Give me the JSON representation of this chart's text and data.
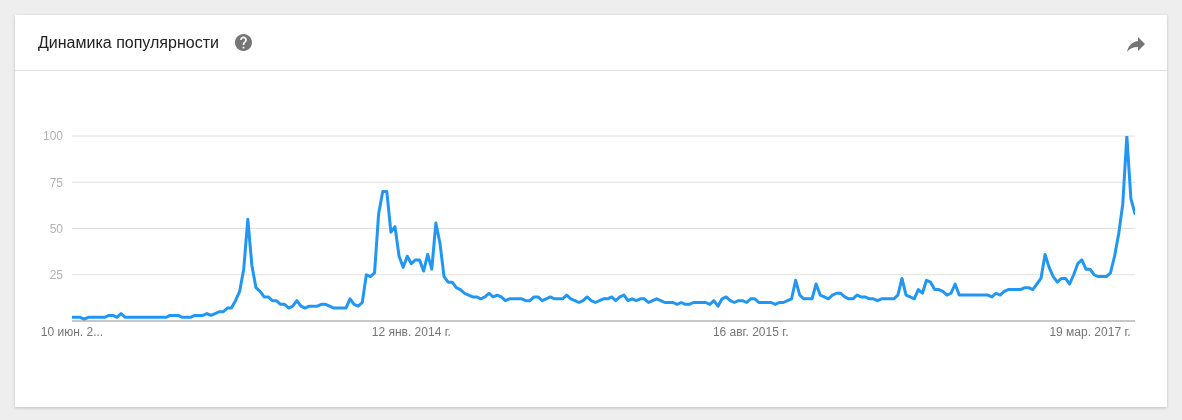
{
  "chart_data": {
    "type": "line",
    "title": "Динамика популярности",
    "color": "#2196f3",
    "x": [
      "2012-06-10",
      "2012-06-24",
      "2012-07-01",
      "2012-07-08",
      "2012-08-05",
      "2012-08-12",
      "2012-08-19",
      "2012-08-26",
      "2012-09-02",
      "2012-09-09",
      "2012-11-18",
      "2012-11-25",
      "2012-12-09",
      "2012-12-16",
      "2012-12-30",
      "2013-01-06",
      "2013-01-20",
      "2013-01-27",
      "2013-02-03",
      "2013-02-10",
      "2013-02-17",
      "2013-02-24",
      "2013-03-03",
      "2013-03-10",
      "2013-03-17",
      "2013-03-24",
      "2013-03-31",
      "2013-04-07",
      "2013-04-14",
      "2013-04-21",
      "2013-04-28",
      "2013-05-05",
      "2013-05-12",
      "2013-05-19",
      "2013-05-26",
      "2013-06-02",
      "2013-06-09",
      "2013-06-16",
      "2013-06-23",
      "2013-06-30",
      "2013-07-07",
      "2013-07-14",
      "2013-07-21",
      "2013-08-04",
      "2013-08-11",
      "2013-08-18",
      "2013-08-25",
      "2013-09-01",
      "2013-09-22",
      "2013-09-29",
      "2013-10-06",
      "2013-10-13",
      "2013-10-20",
      "2013-10-27",
      "2013-11-03",
      "2013-11-10",
      "2013-11-17",
      "2013-11-24",
      "2013-12-01",
      "2013-12-08",
      "2013-12-15",
      "2013-12-22",
      "2013-12-29",
      "2014-01-05",
      "2014-01-12",
      "2014-01-19",
      "2014-01-26",
      "2014-02-02",
      "2014-02-09",
      "2014-02-16",
      "2014-02-23",
      "2014-03-02",
      "2014-03-09",
      "2014-03-16",
      "2014-03-23",
      "2014-03-30",
      "2014-04-06",
      "2014-04-13",
      "2014-04-20",
      "2014-04-27",
      "2014-05-04",
      "2014-05-11",
      "2014-05-18",
      "2014-05-25",
      "2014-06-01",
      "2014-06-08",
      "2014-06-15",
      "2014-06-22",
      "2014-06-29",
      "2014-07-20",
      "2014-07-27",
      "2014-08-03",
      "2014-08-10",
      "2014-08-17",
      "2014-08-24",
      "2014-08-31",
      "2014-09-07",
      "2014-09-14",
      "2014-09-28",
      "2014-10-05",
      "2014-10-12",
      "2014-10-19",
      "2014-10-26",
      "2014-11-02",
      "2014-11-09",
      "2014-11-16",
      "2014-11-23",
      "2014-11-30",
      "2014-12-07",
      "2014-12-14",
      "2014-12-21",
      "2014-12-28",
      "2015-01-04",
      "2015-01-11",
      "2015-01-18",
      "2015-01-25",
      "2015-02-01",
      "2015-02-08",
      "2015-02-15",
      "2015-02-22",
      "2015-03-01",
      "2015-03-08",
      "2015-03-15",
      "2015-03-22",
      "2015-04-05",
      "2015-04-12",
      "2015-04-19",
      "2015-04-26",
      "2015-05-03",
      "2015-05-10",
      "2015-05-31",
      "2015-06-07",
      "2015-06-14",
      "2015-06-21",
      "2015-06-28",
      "2015-07-05",
      "2015-07-12",
      "2015-07-19",
      "2015-07-26",
      "2015-08-02",
      "2015-08-09",
      "2015-08-16",
      "2015-08-23",
      "2015-08-30",
      "2015-09-20",
      "2015-09-27",
      "2015-10-04",
      "2015-10-11",
      "2015-10-18",
      "2015-10-25",
      "2015-11-01",
      "2015-11-08",
      "2015-11-15",
      "2015-11-29",
      "2015-12-06",
      "2015-12-13",
      "2015-12-20",
      "2015-12-27",
      "2016-01-03",
      "2016-01-10",
      "2016-01-17",
      "2016-01-24",
      "2016-01-31",
      "2016-02-07",
      "2016-02-14",
      "2016-02-21",
      "2016-02-28",
      "2016-03-06",
      "2016-03-13",
      "2016-03-20",
      "2016-03-27",
      "2016-04-17",
      "2016-04-24",
      "2016-05-01",
      "2016-05-08",
      "2016-05-15",
      "2016-05-22",
      "2016-05-29",
      "2016-06-05",
      "2016-06-12",
      "2016-06-19",
      "2016-06-26",
      "2016-07-03",
      "2016-07-10",
      "2016-07-17",
      "2016-07-24",
      "2016-07-31",
      "2016-08-07",
      "2016-09-25",
      "2016-10-02",
      "2016-10-09",
      "2016-10-16",
      "2016-10-23",
      "2016-10-30",
      "2016-11-20",
      "2016-11-27",
      "2016-12-04",
      "2016-12-11",
      "2016-12-18",
      "2016-12-25",
      "2017-01-01",
      "2017-01-08",
      "2017-01-15",
      "2017-01-22",
      "2017-01-29",
      "2017-02-05",
      "2017-02-12",
      "2017-02-19",
      "2017-02-26",
      "2017-03-05",
      "2017-03-12",
      "2017-03-19",
      "2017-03-26",
      "2017-04-02",
      "2017-04-16",
      "2017-04-23",
      "2017-04-30",
      "2017-05-07",
      "2017-05-14",
      "2017-05-21",
      "2017-05-28",
      "2017-06-04"
    ],
    "values": [
      2,
      2,
      1,
      2,
      2,
      3,
      3,
      2,
      4,
      2,
      2,
      3,
      3,
      2,
      2,
      3,
      3,
      4,
      3,
      4,
      5,
      5,
      7,
      7,
      11,
      16,
      28,
      55,
      30,
      18,
      16,
      13,
      13,
      11,
      11,
      9,
      9,
      7,
      8,
      11,
      8,
      7,
      8,
      8,
      9,
      9,
      8,
      7,
      7,
      12,
      9,
      8,
      10,
      25,
      24,
      26,
      58,
      70,
      70,
      48,
      51,
      35,
      29,
      35,
      31,
      33,
      33,
      27,
      36,
      28,
      53,
      42,
      24,
      21,
      21,
      18,
      17,
      15,
      14,
      13,
      13,
      12,
      13,
      15,
      13,
      14,
      13,
      11,
      12,
      12,
      11,
      11,
      13,
      13,
      11,
      12,
      13,
      12,
      12,
      14,
      12,
      11,
      10,
      11,
      13,
      11,
      10,
      11,
      12,
      12,
      13,
      11,
      13,
      14,
      11,
      12,
      11,
      12,
      12,
      10,
      11,
      12,
      11,
      10,
      10,
      9,
      10,
      9,
      9,
      10,
      10,
      9,
      11,
      8,
      12,
      13,
      11,
      10,
      11,
      11,
      10,
      12,
      12,
      10,
      10,
      9,
      10,
      10,
      11,
      12,
      22,
      14,
      12,
      12,
      20,
      14,
      13,
      12,
      14,
      15,
      15,
      13,
      12,
      12,
      14,
      13,
      13,
      12,
      12,
      11,
      12,
      12,
      14,
      23,
      14,
      13,
      12,
      17,
      15,
      22,
      21,
      17,
      17,
      16,
      14,
      15,
      20,
      14,
      14,
      13,
      15,
      14,
      16,
      17,
      17,
      18,
      18,
      17,
      20,
      23,
      36,
      29,
      24,
      21,
      23,
      23,
      20,
      25,
      31,
      33,
      28,
      28,
      25,
      24,
      24,
      26,
      35,
      47,
      63,
      100,
      66,
      58
    ],
    "xlim": [
      "2012-06-10",
      "2017-06-04"
    ],
    "xticks": [
      {
        "value": "2012-06-10",
        "label": "10 июн. 2..."
      },
      {
        "value": "2014-01-12",
        "label": "12 янв. 2014 г."
      },
      {
        "value": "2015-08-16",
        "label": "16 авг. 2015 г."
      },
      {
        "value": "2017-03-19",
        "label": "19 мар. 2017 г."
      }
    ],
    "ylim": [
      0,
      100
    ],
    "yticks": [
      25,
      50,
      75,
      100
    ],
    "grid": "y"
  }
}
